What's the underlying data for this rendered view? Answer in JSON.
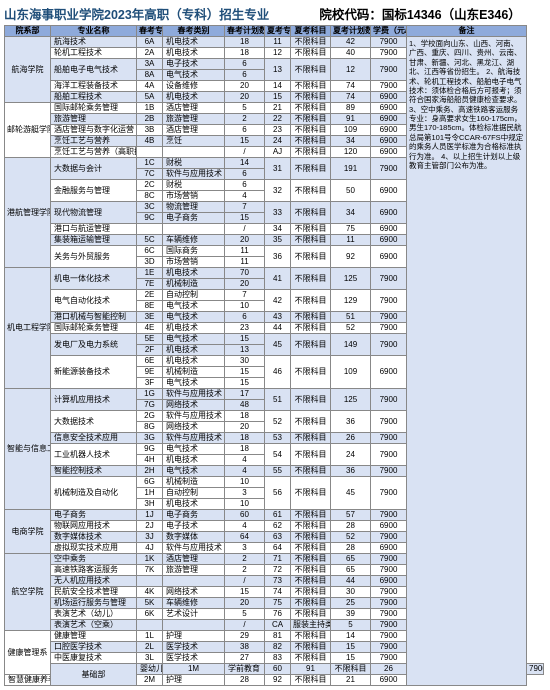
{
  "header": {
    "title": "山东海事职业学院2023年高职（专科）招生专业",
    "code_label": "院校代码：国标14346（山东E346）"
  },
  "columns": [
    "院系部",
    "专业名称",
    "春考专业代号",
    "春考类别",
    "春考计划数",
    "夏考专业代号",
    "夏考科目",
    "夏考计划数",
    "学费（元/年）",
    "备注"
  ],
  "note": "1、学校面向山东、山西、河南、广西、重庆、四川、贵州、云南、甘肃、新疆、河北、黑龙江、湖北、江西等省份招生。\n2、航海技术、轮机工程技术、船舶电子电气技术：须体检合格后方可报考；须符合国家海船船员健康检查要求。\n3、空中乘务、高速铁路客运服务专业：身高要求女生160-175cm，男生170-185cm。体检标准据民航总局第101号令CCAR-67FS中规定的乘务人员医学标准为合格标准执行为准。\n4、以上招生计划以上级教育主管部门公布为准。",
  "rows": [
    {
      "g": 0,
      "dep": {
        "t": "航海学院",
        "rs": 6
      },
      "maj": {
        "t": "航海技术",
        "rs": 1
      },
      "sc": "6A",
      "st": "机电技术",
      "sp": "18",
      "xc": {
        "t": "11",
        "rs": 1
      },
      "xs": {
        "t": "不限科目",
        "rs": 1
      },
      "xp": {
        "t": "42",
        "rs": 1
      },
      "fee": {
        "t": "7900",
        "rs": 1
      }
    },
    {
      "g": 1,
      "maj": {
        "t": "轮机工程技术",
        "rs": 1
      },
      "sc": "2A",
      "st": "机电技术",
      "sp": "18",
      "xc": {
        "t": "12",
        "rs": 1
      },
      "xs": {
        "t": "不限科目",
        "rs": 1
      },
      "xp": {
        "t": "40",
        "rs": 1
      },
      "fee": {
        "t": "7900",
        "rs": 1
      }
    },
    {
      "g": 0,
      "maj": {
        "t": "船舶电子电气技术",
        "rs": 2
      },
      "sc": "3A",
      "st": "电子技术",
      "sp": "6",
      "xc": {
        "t": "13",
        "rs": 2
      },
      "xs": {
        "t": "不限科目",
        "rs": 2
      },
      "xp": {
        "t": "12",
        "rs": 2
      },
      "fee": {
        "t": "7900",
        "rs": 2
      }
    },
    {
      "g": 0,
      "sc": "8A",
      "st": "电气技术",
      "sp": "6"
    },
    {
      "g": 1,
      "maj": {
        "t": "海洋工程装备技术",
        "rs": 1
      },
      "sc": "4A",
      "st": "设备维修",
      "sp": "20",
      "xc": {
        "t": "14",
        "rs": 1
      },
      "xs": {
        "t": "不限科目",
        "rs": 1
      },
      "xp": {
        "t": "74",
        "rs": 1
      },
      "fee": {
        "t": "7900",
        "rs": 1
      }
    },
    {
      "g": 0,
      "maj": {
        "t": "船舶工程技术",
        "rs": 1
      },
      "sc": "5A",
      "st": "机电技术",
      "sp": "20",
      "xc": {
        "t": "15",
        "rs": 1
      },
      "xs": {
        "t": "不限科目",
        "rs": 1
      },
      "xp": {
        "t": "74",
        "rs": 1
      },
      "fee": {
        "t": "6900",
        "rs": 1
      }
    },
    {
      "g": 1,
      "dep": {
        "t": "邮轮游艇学院",
        "rs": 5
      },
      "maj": {
        "t": "国际邮轮乘务管理",
        "rs": 1
      },
      "sc": "1B",
      "st": "酒店管理",
      "sp": "5",
      "xc": {
        "t": "21",
        "rs": 1
      },
      "xs": {
        "t": "不限科目",
        "rs": 1
      },
      "xp": {
        "t": "89",
        "rs": 1
      },
      "fee": {
        "t": "6900",
        "rs": 1
      }
    },
    {
      "g": 0,
      "maj": {
        "t": "旅游管理",
        "rs": 1
      },
      "sc": "2B",
      "st": "旅游管理",
      "sp": "2",
      "xc": {
        "t": "22",
        "rs": 1
      },
      "xs": {
        "t": "不限科目",
        "rs": 1
      },
      "xp": {
        "t": "91",
        "rs": 1
      },
      "fee": {
        "t": "6900",
        "rs": 1
      }
    },
    {
      "g": 1,
      "maj": {
        "t": "酒店管理与数字化运营",
        "rs": 1
      },
      "sc": "3B",
      "st": "酒店管理",
      "sp": "6",
      "xc": {
        "t": "23",
        "rs": 1
      },
      "xs": {
        "t": "不限科目",
        "rs": 1
      },
      "xp": {
        "t": "109",
        "rs": 1
      },
      "fee": {
        "t": "6900",
        "rs": 1
      }
    },
    {
      "g": 0,
      "maj": {
        "t": "烹饪工艺与营养",
        "rs": 1
      },
      "sc": "4B",
      "st": "烹饪",
      "sp": "15",
      "xc": {
        "t": "24",
        "rs": 1
      },
      "xs": {
        "t": "不限科目",
        "rs": 1
      },
      "xp": {
        "t": "34",
        "rs": 1
      },
      "fee": {
        "t": "6900",
        "rs": 1
      }
    },
    {
      "g": 1,
      "maj": {
        "t": "烹饪工艺与营养（高职技师合作培养）",
        "rs": 1
      },
      "sc": "",
      "st": "",
      "sp": "/",
      "xc": {
        "t": "AJ",
        "rs": 1
      },
      "xs": {
        "t": "不限科目",
        "rs": 1
      },
      "xp": {
        "t": "120",
        "rs": 1
      },
      "fee": {
        "t": "6900",
        "rs": 1
      }
    },
    {
      "g": 0,
      "dep": {
        "t": "港航管理学院",
        "rs": 10
      },
      "maj": {
        "t": "大数据与会计",
        "rs": 2
      },
      "sc": "1C",
      "st": "财税",
      "sp": "14",
      "xc": {
        "t": "31",
        "rs": 2
      },
      "xs": {
        "t": "不限科目",
        "rs": 2
      },
      "xp": {
        "t": "191",
        "rs": 2
      },
      "fee": {
        "t": "7900",
        "rs": 2
      }
    },
    {
      "g": 0,
      "sc": "7C",
      "st": "软件与应用技术",
      "sp": "6"
    },
    {
      "g": 1,
      "maj": {
        "t": "金融服务与管理",
        "rs": 2
      },
      "sc": "2C",
      "st": "财税",
      "sp": "6",
      "xc": {
        "t": "32",
        "rs": 2
      },
      "xs": {
        "t": "不限科目",
        "rs": 2
      },
      "xp": {
        "t": "50",
        "rs": 2
      },
      "fee": {
        "t": "6900",
        "rs": 2
      }
    },
    {
      "g": 1,
      "sc": "8C",
      "st": "市场营销",
      "sp": "4"
    },
    {
      "g": 0,
      "maj": {
        "t": "现代物流管理",
        "rs": 2
      },
      "sc": "3C",
      "st": "物流管理",
      "sp": "7",
      "xc": {
        "t": "33",
        "rs": 2
      },
      "xs": {
        "t": "不限科目",
        "rs": 2
      },
      "xp": {
        "t": "34",
        "rs": 2
      },
      "fee": {
        "t": "6900",
        "rs": 2
      }
    },
    {
      "g": 0,
      "sc": "9C",
      "st": "电子商务",
      "sp": "15"
    },
    {
      "g": 1,
      "maj": {
        "t": "港口与航运管理",
        "rs": 1
      },
      "sc": "",
      "st": "",
      "sp": "/",
      "xc": {
        "t": "34",
        "rs": 1
      },
      "xs": {
        "t": "不限科目",
        "rs": 1
      },
      "xp": {
        "t": "75",
        "rs": 1
      },
      "fee": {
        "t": "6900",
        "rs": 1
      }
    },
    {
      "g": 0,
      "maj": {
        "t": "集装箱运输管理",
        "rs": 1
      },
      "sc": "5C",
      "st": "车辆维修",
      "sp": "20",
      "xc": {
        "t": "35",
        "rs": 1
      },
      "xs": {
        "t": "不限科目",
        "rs": 1
      },
      "xp": {
        "t": "11",
        "rs": 1
      },
      "fee": {
        "t": "6900",
        "rs": 1
      }
    },
    {
      "g": 1,
      "maj": {
        "t": "关务与外贸服务",
        "rs": 2
      },
      "sc": "6C",
      "st": "国际商务",
      "sp": "11",
      "xc": {
        "t": "36",
        "rs": 2
      },
      "xs": {
        "t": "不限科目",
        "rs": 2
      },
      "xp": {
        "t": "92",
        "rs": 2
      },
      "fee": {
        "t": "6900",
        "rs": 2
      }
    },
    {
      "g": 1,
      "sc": "3D",
      "st": "市场营销",
      "sp": "11"
    },
    {
      "g": 0,
      "dep": {
        "t": "机电工程学院",
        "rs": 11
      },
      "maj": {
        "t": "机电一体化技术",
        "rs": 2
      },
      "sc": "1E",
      "st": "机电技术",
      "sp": "70",
      "xc": {
        "t": "41",
        "rs": 2
      },
      "xs": {
        "t": "不限科目",
        "rs": 2
      },
      "xp": {
        "t": "125",
        "rs": 2
      },
      "fee": {
        "t": "7900",
        "rs": 2
      }
    },
    {
      "g": 0,
      "sc": "7E",
      "st": "机械制造",
      "sp": "20"
    },
    {
      "g": 1,
      "maj": {
        "t": "电气自动化技术",
        "rs": 2
      },
      "sc": "2E",
      "st": "自动控制",
      "sp": "7",
      "xc": {
        "t": "42",
        "rs": 2
      },
      "xs": {
        "t": "不限科目",
        "rs": 2
      },
      "xp": {
        "t": "129",
        "rs": 2
      },
      "fee": {
        "t": "7900",
        "rs": 2
      }
    },
    {
      "g": 1,
      "sc": "8E",
      "st": "电气技术",
      "sp": "10"
    },
    {
      "g": 0,
      "maj": {
        "t": "港口机械与智能控制",
        "rs": 1
      },
      "sc": "3E",
      "st": "电气技术",
      "sp": "6",
      "xc": {
        "t": "43",
        "rs": 1
      },
      "xs": {
        "t": "不限科目",
        "rs": 1
      },
      "xp": {
        "t": "51",
        "rs": 1
      },
      "fee": {
        "t": "7900",
        "rs": 1
      }
    },
    {
      "g": 1,
      "maj": {
        "t": "国际邮轮乘务管理",
        "rs": 1
      },
      "sc": "4E",
      "st": "机电技术",
      "sp": "23",
      "xc": {
        "t": "44",
        "rs": 1
      },
      "xs": {
        "t": "不限科目",
        "rs": 1
      },
      "xp": {
        "t": "52",
        "rs": 1
      },
      "fee": {
        "t": "7900",
        "rs": 1
      }
    },
    {
      "g": 0,
      "maj": {
        "t": "发电厂及电力系统",
        "rs": 2
      },
      "sc": "5E",
      "st": "电气技术",
      "sp": "15",
      "xc": {
        "t": "45",
        "rs": 2
      },
      "xs": {
        "t": "不限科目",
        "rs": 2
      },
      "xp": {
        "t": "149",
        "rs": 2
      },
      "fee": {
        "t": "7900",
        "rs": 2
      }
    },
    {
      "g": 0,
      "sc": "2F",
      "st": "机电技术",
      "sp": "13"
    },
    {
      "g": 1,
      "maj": {
        "t": "新能源装备技术",
        "rs": 3
      },
      "sc": "6E",
      "st": "机电技术",
      "sp": "30",
      "xc": {
        "t": "46",
        "rs": 3
      },
      "xs": {
        "t": "不限科目",
        "rs": 3
      },
      "xp": {
        "t": "109",
        "rs": 3
      },
      "fee": {
        "t": "6900",
        "rs": 3
      }
    },
    {
      "g": 1,
      "sc": "9E",
      "st": "机械制造",
      "sp": "15"
    },
    {
      "g": 1,
      "sc": "3F",
      "st": "电气技术",
      "sp": "15"
    },
    {
      "g": 0,
      "dep": {
        "t": "智能与信息工程学院",
        "rs": 11
      },
      "maj": {
        "t": "计算机应用技术",
        "rs": 2
      },
      "sc": "1G",
      "st": "软件与应用技术",
      "sp": "17",
      "xc": {
        "t": "51",
        "rs": 2
      },
      "xs": {
        "t": "不限科目",
        "rs": 2
      },
      "xp": {
        "t": "125",
        "rs": 2
      },
      "fee": {
        "t": "7900",
        "rs": 2
      }
    },
    {
      "g": 0,
      "sc": "7G",
      "st": "网络技术",
      "sp": "48"
    },
    {
      "g": 1,
      "maj": {
        "t": "大数据技术",
        "rs": 2
      },
      "sc": "2G",
      "st": "软件与应用技术",
      "sp": "18",
      "xc": {
        "t": "52",
        "rs": 2
      },
      "xs": {
        "t": "不限科目",
        "rs": 2
      },
      "xp": {
        "t": "36",
        "rs": 2
      },
      "fee": {
        "t": "7900",
        "rs": 2
      }
    },
    {
      "g": 1,
      "sc": "8G",
      "st": "网络技术",
      "sp": "20"
    },
    {
      "g": 0,
      "maj": {
        "t": "信息安全技术应用",
        "rs": 1
      },
      "sc": "3G",
      "st": "软件与应用技术",
      "sp": "18",
      "xc": {
        "t": "53",
        "rs": 1
      },
      "xs": {
        "t": "不限科目",
        "rs": 1
      },
      "xp": {
        "t": "26",
        "rs": 1
      },
      "fee": {
        "t": "7900",
        "rs": 1
      }
    },
    {
      "g": 1,
      "maj": {
        "t": "工业机器人技术",
        "rs": 2
      },
      "sc": "9G",
      "st": "电气技术",
      "sp": "18",
      "xc": {
        "t": "54",
        "rs": 2
      },
      "xs": {
        "t": "不限科目",
        "rs": 2
      },
      "xp": {
        "t": "24",
        "rs": 2
      },
      "fee": {
        "t": "7900",
        "rs": 2
      }
    },
    {
      "g": 1,
      "sc": "4H",
      "st": "机电技术",
      "sp": "4"
    },
    {
      "g": 0,
      "maj": {
        "t": "智能控制技术",
        "rs": 1
      },
      "sc": "2H",
      "st": "电气技术",
      "sp": "4",
      "xc": {
        "t": "55",
        "rs": 1
      },
      "xs": {
        "t": "不限科目",
        "rs": 1
      },
      "xp": {
        "t": "36",
        "rs": 1
      },
      "fee": {
        "t": "7900",
        "rs": 1
      }
    },
    {
      "g": 1,
      "maj": {
        "t": "机械制造及自动化",
        "rs": 3
      },
      "sc": "6G",
      "st": "机械制造",
      "sp": "10",
      "xc": {
        "t": "56",
        "rs": 3
      },
      "xs": {
        "t": "不限科目",
        "rs": 3
      },
      "xp": {
        "t": "45",
        "rs": 3
      },
      "fee": {
        "t": "7900",
        "rs": 3
      }
    },
    {
      "g": 1,
      "sc": "1H",
      "st": "自动控制",
      "sp": "3"
    },
    {
      "g": 1,
      "sc": "3H",
      "st": "机电技术",
      "sp": "10"
    },
    {
      "g": 0,
      "dep": {
        "t": "电商学院",
        "rs": 4
      },
      "maj": {
        "t": "电子商务",
        "rs": 1
      },
      "sc": "1J",
      "st": "电子商务",
      "sp": "60",
      "xc": {
        "t": "61",
        "rs": 1
      },
      "xs": {
        "t": "不限科目",
        "rs": 1
      },
      "xp": {
        "t": "57",
        "rs": 1
      },
      "fee": {
        "t": "7900",
        "rs": 1
      }
    },
    {
      "g": 1,
      "maj": {
        "t": "物联网应用技术",
        "rs": 1
      },
      "sc": "2J",
      "st": "电子技术",
      "sp": "4",
      "xc": {
        "t": "62",
        "rs": 1
      },
      "xs": {
        "t": "不限科目",
        "rs": 1
      },
      "xp": {
        "t": "28",
        "rs": 1
      },
      "fee": {
        "t": "6900",
        "rs": 1
      }
    },
    {
      "g": 0,
      "maj": {
        "t": "数字媒体技术",
        "rs": 1
      },
      "sc": "3J",
      "st": "数字媒体",
      "sp": "64",
      "xc": {
        "t": "63",
        "rs": 1
      },
      "xs": {
        "t": "不限科目",
        "rs": 1
      },
      "xp": {
        "t": "52",
        "rs": 1
      },
      "fee": {
        "t": "7900",
        "rs": 1
      }
    },
    {
      "g": 1,
      "maj": {
        "t": "虚拟现实技术应用",
        "rs": 1
      },
      "sc": "4J",
      "st": "软件与应用技术",
      "sp": "3",
      "xc": {
        "t": "64",
        "rs": 1
      },
      "xs": {
        "t": "不限科目",
        "rs": 1
      },
      "xp": {
        "t": "28",
        "rs": 1
      },
      "fee": {
        "t": "6900",
        "rs": 1
      }
    },
    {
      "g": 0,
      "dep": {
        "t": "航空学院",
        "rs": 7
      },
      "maj": {
        "t": "空中乘务",
        "rs": 1
      },
      "sc": "1K",
      "st": "酒店管理",
      "sp": "2",
      "xc": {
        "t": "71",
        "rs": 1
      },
      "xs": {
        "t": "不限科目",
        "rs": 1
      },
      "xp": {
        "t": "65",
        "rs": 1
      },
      "fee": {
        "t": "7900",
        "rs": 1
      }
    },
    {
      "g": 1,
      "maj": {
        "t": "高速铁路客运服务",
        "rs": 1
      },
      "sc": "7K",
      "st": "旅游管理",
      "sp": "2",
      "xc": {
        "t": "72",
        "rs": 1
      },
      "xs": {
        "t": "不限科目",
        "rs": 1
      },
      "xp": {
        "t": "65",
        "rs": 1
      },
      "fee": {
        "t": "7900",
        "rs": 1
      }
    },
    {
      "g": 0,
      "maj": {
        "t": "无人机应用技术",
        "rs": 1
      },
      "sc": "",
      "st": "",
      "sp": "/",
      "xc": {
        "t": "73",
        "rs": 1
      },
      "xs": {
        "t": "不限科目",
        "rs": 1
      },
      "xp": {
        "t": "44",
        "rs": 1
      },
      "fee": {
        "t": "6900",
        "rs": 1
      }
    },
    {
      "g": 1,
      "maj": {
        "t": "民航安全技术管理",
        "rs": 1
      },
      "sc": "4K",
      "st": "网络技术",
      "sp": "15",
      "xc": {
        "t": "74",
        "rs": 1
      },
      "xs": {
        "t": "不限科目",
        "rs": 1
      },
      "xp": {
        "t": "30",
        "rs": 1
      },
      "fee": {
        "t": "7900",
        "rs": 1
      }
    },
    {
      "g": 0,
      "maj": {
        "t": "机场运行服务与管理",
        "rs": 1
      },
      "sc": "5K",
      "st": "车辆维修",
      "sp": "20",
      "xc": {
        "t": "75",
        "rs": 1
      },
      "xs": {
        "t": "不限科目",
        "rs": 1
      },
      "xp": {
        "t": "25",
        "rs": 1
      },
      "fee": {
        "t": "7900",
        "rs": 1
      }
    },
    {
      "g": 1,
      "maj": {
        "t": "表演艺术（幼儿）",
        "rs": 1
      },
      "sc": "6K",
      "st": "艺术设计",
      "sp": "5",
      "xc": {
        "t": "76",
        "rs": 1
      },
      "xs": {
        "t": "不限科目",
        "rs": 1
      },
      "xp": {
        "t": "39",
        "rs": 1
      },
      "fee": {
        "t": "7900",
        "rs": 1
      }
    },
    {
      "g": 0,
      "maj": {
        "t": "表演艺术（空乘）",
        "rs": 1
      },
      "sc": "",
      "st": "",
      "sp": "/",
      "xc": {
        "t": "CA",
        "rs": 1
      },
      "xs": {
        "t": "服装主持类",
        "rs": 1
      },
      "xp": {
        "t": "5",
        "rs": 1
      },
      "fee": {
        "t": "7900",
        "rs": 1
      }
    },
    {
      "g": 1,
      "dep": {
        "t": "健康管理系",
        "rs": 4
      },
      "maj": {
        "t": "健康管理",
        "rs": 1
      },
      "sc": "1L",
      "st": "护理",
      "sp": "29",
      "xc": {
        "t": "81",
        "rs": 1
      },
      "xs": {
        "t": "不限科目",
        "rs": 1
      },
      "xp": {
        "t": "14",
        "rs": 1
      },
      "fee": {
        "t": "7900",
        "rs": 1
      }
    },
    {
      "g": 0,
      "maj": {
        "t": "口腔医学技术",
        "rs": 1
      },
      "sc": "2L",
      "st": "医学技术",
      "sp": "38",
      "xc": {
        "t": "82",
        "rs": 1
      },
      "xs": {
        "t": "不限科目",
        "rs": 1
      },
      "xp": {
        "t": "15",
        "rs": 1
      },
      "fee": {
        "t": "7900",
        "rs": 1
      }
    },
    {
      "g": 1,
      "maj": {
        "t": "中医康复技术",
        "rs": 1
      },
      "sc": "3L",
      "st": "医学技术",
      "sp": "27",
      "xc": {
        "t": "83",
        "rs": 1
      },
      "xs": {
        "t": "不限科目",
        "rs": 1
      },
      "xp": {
        "t": "15",
        "rs": 1
      },
      "fee": {
        "t": "7900",
        "rs": 1
      }
    },
    {
      "g": 0,
      "dep": {
        "t": "基础部",
        "rs": 2
      },
      "maj": {
        "t": "婴幼儿托育服务与管理",
        "rs": 1
      },
      "sc": "1M",
      "st": "学前教育",
      "sp": "60",
      "xc": {
        "t": "91",
        "rs": 1
      },
      "xs": {
        "t": "不限科目",
        "rs": 1
      },
      "xp": {
        "t": "26",
        "rs": 1
      },
      "fee": {
        "t": "7900",
        "rs": 1
      }
    },
    {
      "g": 1,
      "maj": {
        "t": "智慧健康养老服务与管理",
        "rs": 1
      },
      "sc": "2M",
      "st": "护理",
      "sp": "28",
      "xc": {
        "t": "92",
        "rs": 1
      },
      "xs": {
        "t": "不限科目",
        "rs": 1
      },
      "xp": {
        "t": "21",
        "rs": 1
      },
      "fee": {
        "t": "6900",
        "rs": 1
      }
    }
  ]
}
